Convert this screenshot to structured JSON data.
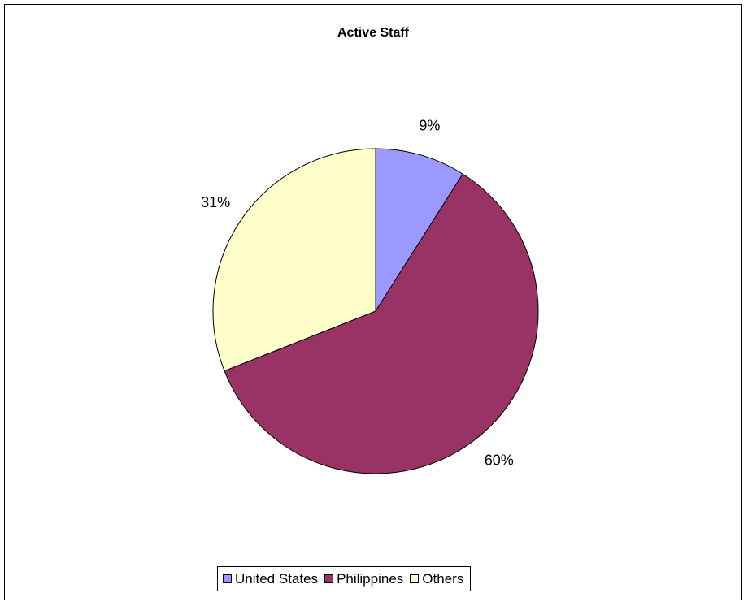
{
  "chart_data": {
    "type": "pie",
    "title": "Active Staff",
    "slices": [
      {
        "name": "United States",
        "value": 9,
        "label": "9%",
        "color": "#9999FF"
      },
      {
        "name": "Philippines",
        "value": 60,
        "label": "60%",
        "color": "#993366"
      },
      {
        "name": "Others",
        "value": 31,
        "label": "31%",
        "color": "#FFFFCC"
      }
    ],
    "legend_position": "bottom"
  }
}
